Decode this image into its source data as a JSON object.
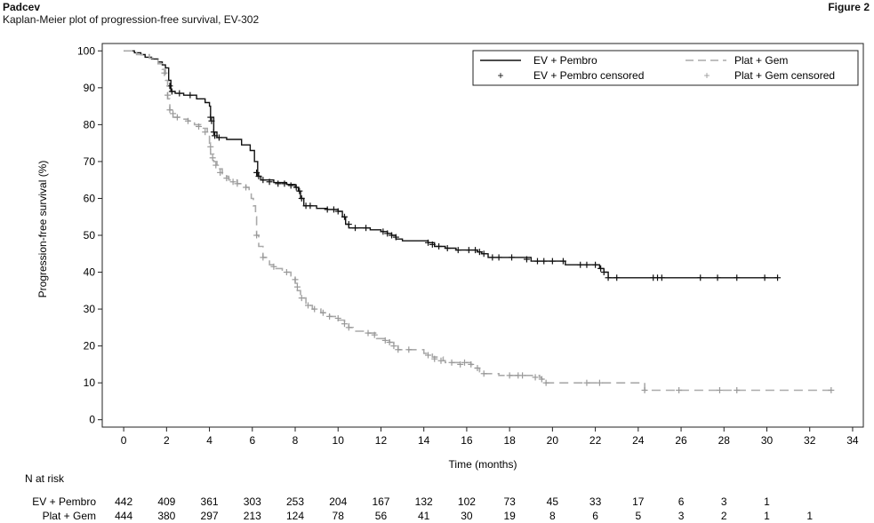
{
  "header": {
    "drug": "Padcev",
    "subtitle": "Kaplan-Meier plot of progression-free survival, EV-302",
    "figure_label": "Figure 2"
  },
  "chart_data": {
    "type": "line",
    "subtype": "kaplan-meier step curve",
    "xlabel": "Time (months)",
    "ylabel": "Progression-free survival (%)",
    "xlim": [
      -1,
      34.5
    ],
    "ylim": [
      -2,
      102
    ],
    "xticks": [
      0,
      2,
      4,
      6,
      8,
      10,
      12,
      14,
      16,
      18,
      20,
      22,
      24,
      26,
      28,
      30,
      32,
      34
    ],
    "yticks": [
      0,
      10,
      20,
      30,
      40,
      50,
      60,
      70,
      80,
      90,
      100
    ],
    "grid": false,
    "legend_position": "top-right",
    "legend": {
      "line_a": "EV + Pembro",
      "line_b": "Plat + Gem",
      "censor_a": "EV + Pembro censored",
      "censor_b": "Plat + Gem censored"
    },
    "series": [
      {
        "name": "EV + Pembro",
        "color": "#111111",
        "dash": "solid",
        "steps": [
          [
            0,
            100
          ],
          [
            0.5,
            99.5
          ],
          [
            0.8,
            99
          ],
          [
            1,
            98.3
          ],
          [
            1.3,
            97.8
          ],
          [
            1.6,
            97
          ],
          [
            1.8,
            96.2
          ],
          [
            1.95,
            95.4
          ],
          [
            2.1,
            92
          ],
          [
            2.2,
            89
          ],
          [
            2.4,
            88.5
          ],
          [
            2.8,
            88
          ],
          [
            3.4,
            87
          ],
          [
            3.8,
            86
          ],
          [
            4,
            85
          ],
          [
            4.05,
            82
          ],
          [
            4.2,
            78
          ],
          [
            4.35,
            76.5
          ],
          [
            4.8,
            76
          ],
          [
            5.5,
            74.5
          ],
          [
            5.9,
            73
          ],
          [
            6.1,
            70
          ],
          [
            6.25,
            66
          ],
          [
            6.4,
            65
          ],
          [
            7,
            64.3
          ],
          [
            7.6,
            63.8
          ],
          [
            8,
            63
          ],
          [
            8.15,
            62
          ],
          [
            8.25,
            60
          ],
          [
            8.4,
            58
          ],
          [
            9,
            57.3
          ],
          [
            9.5,
            57
          ],
          [
            10,
            56.5
          ],
          [
            10.2,
            55
          ],
          [
            10.35,
            53
          ],
          [
            10.5,
            52
          ],
          [
            11,
            52
          ],
          [
            11.5,
            51.5
          ],
          [
            12,
            51
          ],
          [
            12.3,
            50.5
          ],
          [
            12.5,
            50
          ],
          [
            12.7,
            49
          ],
          [
            13,
            48.5
          ],
          [
            14,
            48.5
          ],
          [
            14.2,
            48
          ],
          [
            14.5,
            47
          ],
          [
            15,
            46.5
          ],
          [
            15.5,
            46
          ],
          [
            16,
            46
          ],
          [
            16.5,
            45.5
          ],
          [
            16.7,
            45
          ],
          [
            17,
            44
          ],
          [
            19,
            43
          ],
          [
            20.5,
            43
          ],
          [
            20.6,
            42
          ],
          [
            22,
            42
          ],
          [
            22.2,
            41
          ],
          [
            22.4,
            40
          ],
          [
            22.6,
            38.5
          ],
          [
            30.5,
            38.5
          ]
        ],
        "censored": [
          [
            2.15,
            90.5
          ],
          [
            2.25,
            89
          ],
          [
            2.6,
            88.5
          ],
          [
            3.1,
            88
          ],
          [
            4.05,
            82
          ],
          [
            4.1,
            81
          ],
          [
            4.2,
            78
          ],
          [
            4.25,
            77
          ],
          [
            4.45,
            76.5
          ],
          [
            6.2,
            67
          ],
          [
            6.3,
            66
          ],
          [
            6.5,
            65
          ],
          [
            6.8,
            64.5
          ],
          [
            7.2,
            64
          ],
          [
            7.5,
            64
          ],
          [
            7.8,
            63.5
          ],
          [
            8.05,
            63
          ],
          [
            8.2,
            62
          ],
          [
            8.3,
            60
          ],
          [
            8.5,
            58
          ],
          [
            8.7,
            58
          ],
          [
            9.5,
            57
          ],
          [
            9.8,
            57
          ],
          [
            10,
            56.5
          ],
          [
            10.3,
            55
          ],
          [
            10.5,
            53
          ],
          [
            10.8,
            52
          ],
          [
            11.3,
            52
          ],
          [
            12.1,
            51
          ],
          [
            12.3,
            50.5
          ],
          [
            12.5,
            50
          ],
          [
            12.7,
            49.5
          ],
          [
            14.2,
            48
          ],
          [
            14.4,
            47.5
          ],
          [
            14.7,
            47
          ],
          [
            15.1,
            46.5
          ],
          [
            15.6,
            46
          ],
          [
            16.1,
            46
          ],
          [
            16.4,
            46
          ],
          [
            16.6,
            45.5
          ],
          [
            16.8,
            45
          ],
          [
            17.2,
            44
          ],
          [
            17.5,
            44
          ],
          [
            18.1,
            44
          ],
          [
            18.8,
            43.5
          ],
          [
            19.3,
            43
          ],
          [
            19.6,
            43
          ],
          [
            20,
            43
          ],
          [
            20.5,
            43
          ],
          [
            21.3,
            42
          ],
          [
            21.6,
            42
          ],
          [
            22,
            42
          ],
          [
            22.25,
            41
          ],
          [
            22.4,
            40
          ],
          [
            22.6,
            38.5
          ],
          [
            23,
            38.5
          ],
          [
            24.7,
            38.5
          ],
          [
            24.9,
            38.5
          ],
          [
            25.1,
            38.5
          ],
          [
            26.9,
            38.5
          ],
          [
            27.7,
            38.5
          ],
          [
            28.6,
            38.5
          ],
          [
            29.9,
            38.5
          ],
          [
            30.5,
            38.5
          ]
        ]
      },
      {
        "name": "Plat + Gem",
        "color": "#aaaaaa",
        "dash": "dashed",
        "steps": [
          [
            0,
            100
          ],
          [
            0.6,
            99
          ],
          [
            1.2,
            98
          ],
          [
            1.6,
            96.5
          ],
          [
            1.8,
            95
          ],
          [
            1.95,
            92
          ],
          [
            2.05,
            87
          ],
          [
            2.15,
            84
          ],
          [
            2.3,
            82
          ],
          [
            2.6,
            81.5
          ],
          [
            3,
            81
          ],
          [
            3.3,
            80
          ],
          [
            3.6,
            79
          ],
          [
            3.9,
            77
          ],
          [
            4,
            75
          ],
          [
            4.05,
            72
          ],
          [
            4.2,
            70
          ],
          [
            4.35,
            68
          ],
          [
            4.6,
            66
          ],
          [
            4.9,
            65
          ],
          [
            5.3,
            64
          ],
          [
            5.7,
            63
          ],
          [
            5.85,
            62
          ],
          [
            5.95,
            60
          ],
          [
            6.05,
            58
          ],
          [
            6.15,
            55
          ],
          [
            6.2,
            50
          ],
          [
            6.3,
            47
          ],
          [
            6.5,
            44
          ],
          [
            6.8,
            42
          ],
          [
            7.1,
            41
          ],
          [
            7.4,
            40
          ],
          [
            7.8,
            39
          ],
          [
            8,
            37
          ],
          [
            8.1,
            35
          ],
          [
            8.25,
            33
          ],
          [
            8.5,
            31
          ],
          [
            8.8,
            30
          ],
          [
            9.2,
            29
          ],
          [
            9.6,
            28
          ],
          [
            10,
            27
          ],
          [
            10.3,
            26
          ],
          [
            10.5,
            25
          ],
          [
            10.7,
            24
          ],
          [
            11.4,
            23.5
          ],
          [
            11.8,
            22
          ],
          [
            12.2,
            21.5
          ],
          [
            12.4,
            21
          ],
          [
            12.6,
            20
          ],
          [
            12.8,
            19
          ],
          [
            13.5,
            19
          ],
          [
            14,
            18
          ],
          [
            14.4,
            17
          ],
          [
            14.9,
            16
          ],
          [
            15,
            15.5
          ],
          [
            16.2,
            15
          ],
          [
            16.4,
            14
          ],
          [
            16.6,
            13
          ],
          [
            16.8,
            12.5
          ],
          [
            17.5,
            12
          ],
          [
            19.4,
            11.5
          ],
          [
            19.5,
            11
          ],
          [
            19.6,
            10.5
          ],
          [
            19.7,
            10
          ],
          [
            24.2,
            10
          ],
          [
            24.3,
            8
          ],
          [
            33,
            8
          ]
        ],
        "censored": [
          [
            1.9,
            94
          ],
          [
            2.05,
            88
          ],
          [
            2.15,
            84
          ],
          [
            2.3,
            83
          ],
          [
            2.5,
            82
          ],
          [
            3,
            81
          ],
          [
            3.5,
            79.5
          ],
          [
            3.8,
            78
          ],
          [
            4.05,
            74
          ],
          [
            4.15,
            71
          ],
          [
            4.3,
            69
          ],
          [
            4.5,
            67
          ],
          [
            4.8,
            65.5
          ],
          [
            5.1,
            64.5
          ],
          [
            5.3,
            64
          ],
          [
            5.7,
            63
          ],
          [
            6.2,
            50
          ],
          [
            6.5,
            44
          ],
          [
            7,
            41.5
          ],
          [
            7.6,
            40
          ],
          [
            8,
            38
          ],
          [
            8.1,
            36
          ],
          [
            8.3,
            33
          ],
          [
            8.6,
            31
          ],
          [
            8.9,
            30
          ],
          [
            9.3,
            29
          ],
          [
            9.6,
            28
          ],
          [
            10,
            27.5
          ],
          [
            10.3,
            26
          ],
          [
            10.5,
            25
          ],
          [
            11.4,
            23.5
          ],
          [
            11.7,
            23
          ],
          [
            12.2,
            21.5
          ],
          [
            12.4,
            21
          ],
          [
            12.6,
            20
          ],
          [
            12.8,
            19
          ],
          [
            13.3,
            19
          ],
          [
            14.2,
            17.5
          ],
          [
            14.5,
            16.5
          ],
          [
            14.8,
            16
          ],
          [
            15.3,
            15.5
          ],
          [
            15.7,
            15
          ],
          [
            15.9,
            15.5
          ],
          [
            16.2,
            15
          ],
          [
            16.5,
            14
          ],
          [
            16.8,
            12.5
          ],
          [
            18,
            12
          ],
          [
            18.4,
            12
          ],
          [
            18.6,
            12
          ],
          [
            19.2,
            11.5
          ],
          [
            19.5,
            11
          ],
          [
            19.7,
            10
          ],
          [
            21.6,
            10
          ],
          [
            22.2,
            10
          ],
          [
            24.3,
            8
          ],
          [
            25.9,
            8
          ],
          [
            27.8,
            8
          ],
          [
            28.6,
            8
          ],
          [
            33,
            8
          ]
        ]
      }
    ],
    "risk_table": {
      "title": "N at risk",
      "times": [
        0,
        2,
        4,
        6,
        8,
        10,
        12,
        14,
        16,
        18,
        20,
        22,
        24,
        26,
        28,
        30,
        32
      ],
      "rows": [
        {
          "label": "EV + Pembro",
          "values": [
            "442",
            "409",
            "361",
            "303",
            "253",
            "204",
            "167",
            "132",
            "102",
            "73",
            "45",
            "33",
            "17",
            "6",
            "3",
            "1",
            ""
          ]
        },
        {
          "label": "Plat + Gem",
          "values": [
            "444",
            "380",
            "297",
            "213",
            "124",
            "78",
            "56",
            "41",
            "30",
            "19",
            "8",
            "6",
            "5",
            "3",
            "2",
            "1",
            "1"
          ]
        }
      ]
    }
  }
}
